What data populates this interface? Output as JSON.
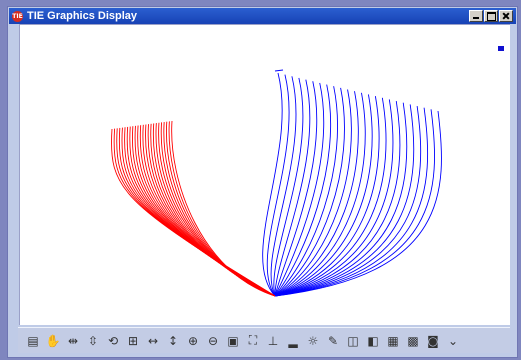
{
  "window": {
    "title": "TIE Graphics Display",
    "icon_text": "TIE"
  },
  "colors": {
    "port_lines": "#ff0000",
    "starboard_lines": "#0000ff",
    "titlebar": "#1f4fc2"
  },
  "toolbar": {
    "tools": [
      {
        "name": "view-icon",
        "glyph": "▤"
      },
      {
        "name": "pan-hand-icon",
        "glyph": "✋"
      },
      {
        "name": "pan-horizontal-icon",
        "glyph": "⇹"
      },
      {
        "name": "pan-vertical-icon",
        "glyph": "⇳"
      },
      {
        "name": "rotate-icon",
        "glyph": "⟲"
      },
      {
        "name": "fit-icon",
        "glyph": "⊞"
      },
      {
        "name": "stretch-horizontal-icon",
        "glyph": "↔"
      },
      {
        "name": "stretch-vertical-icon",
        "glyph": "↕"
      },
      {
        "name": "zoom-in-icon",
        "glyph": "⊕"
      },
      {
        "name": "zoom-out-icon",
        "glyph": "⊖"
      },
      {
        "name": "zoom-window-icon",
        "glyph": "▣"
      },
      {
        "name": "zoom-extents-icon",
        "glyph": "⛶"
      },
      {
        "name": "axes-icon",
        "glyph": "⊥"
      },
      {
        "name": "def-icon",
        "glyph": "▂"
      },
      {
        "name": "light-icon",
        "glyph": "☼"
      },
      {
        "name": "eraser-icon",
        "glyph": "✎"
      },
      {
        "name": "cube-front-icon",
        "glyph": "◫"
      },
      {
        "name": "cube-side-icon",
        "glyph": "◧"
      },
      {
        "name": "view-top-icon",
        "glyph": "▦"
      },
      {
        "name": "view-iso-icon",
        "glyph": "▩"
      },
      {
        "name": "camera-icon",
        "glyph": "◙"
      },
      {
        "name": "more-chevron-icon",
        "glyph": "⌄"
      }
    ]
  },
  "hull": {
    "station_count": 24
  }
}
